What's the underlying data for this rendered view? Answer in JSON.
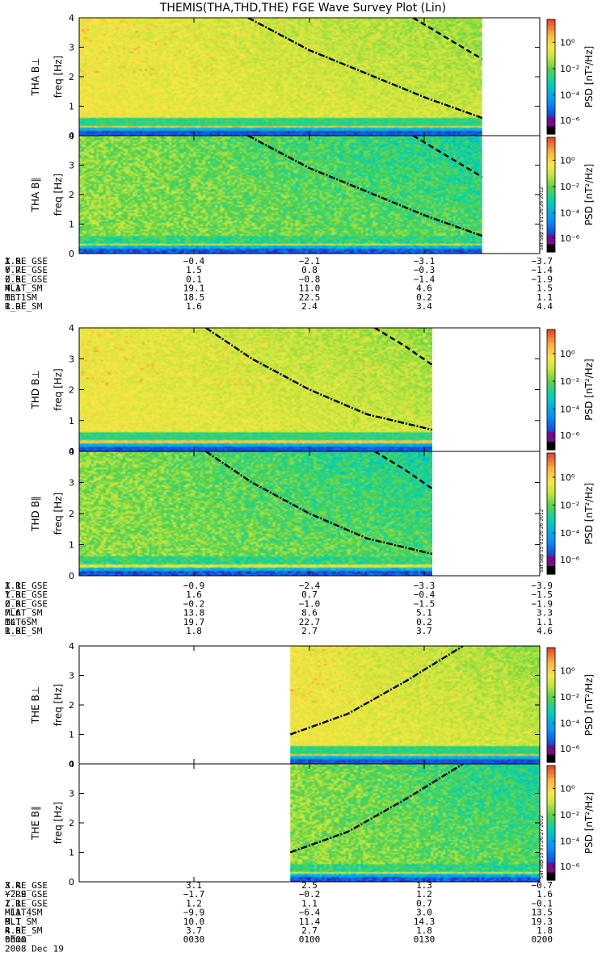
{
  "title": "THEMIS(THA,THD,THE) FGE Wave Survey Plot (Lin)",
  "colorbar": {
    "label": "PSD [nT²/Hz]",
    "ticks": [
      "10⁰",
      "10⁻²",
      "10⁻⁴",
      "10⁻⁶"
    ]
  },
  "chart_data": {
    "type": "heatmap",
    "x_unit": "hhmm",
    "time_ticks": [
      "0000",
      "0030",
      "0100",
      "0130",
      "0200"
    ],
    "date_label": "2008 Dec 19",
    "ylabel": "freq [Hz]",
    "ylim": [
      0,
      4
    ],
    "y_ticks": [
      "0",
      "1",
      "2",
      "3",
      "4"
    ],
    "panels": [
      {
        "probe": "THA",
        "label": "THA B⊥",
        "data_start": 0.0,
        "data_end": 105.0,
        "curves": [
          {
            "style": "dashdot",
            "points": [
              [
                44,
                4.0
              ],
              [
                60,
                2.9
              ],
              [
                75,
                2.1
              ],
              [
                90,
                1.3
              ],
              [
                105,
                0.6
              ]
            ]
          },
          {
            "style": "dash",
            "points": [
              [
                87,
                4.0
              ],
              [
                96,
                3.3
              ],
              [
                105,
                2.6
              ]
            ]
          }
        ]
      },
      {
        "probe": "THA",
        "label": "THA B∥",
        "data_start": 0.0,
        "data_end": 105.0,
        "stamp": "Sat Sep 15 01:26:26 2012",
        "curves": [
          {
            "style": "dashdot",
            "points": [
              [
                44,
                4.0
              ],
              [
                60,
                2.9
              ],
              [
                75,
                2.1
              ],
              [
                90,
                1.3
              ],
              [
                105,
                0.6
              ]
            ]
          },
          {
            "style": "dash",
            "points": [
              [
                87,
                4.0
              ],
              [
                96,
                3.3
              ],
              [
                105,
                2.6
              ]
            ]
          }
        ]
      },
      {
        "probe": "THD",
        "label": "THD B⊥",
        "data_start": 0.0,
        "data_end": 92.0,
        "curves": [
          {
            "style": "dashdot",
            "points": [
              [
                33,
                4.0
              ],
              [
                45,
                3.0
              ],
              [
                60,
                2.0
              ],
              [
                75,
                1.2
              ],
              [
                92,
                0.7
              ]
            ]
          },
          {
            "style": "dash",
            "points": [
              [
                77,
                4.0
              ],
              [
                85,
                3.4
              ],
              [
                92,
                2.8
              ]
            ]
          }
        ]
      },
      {
        "probe": "THD",
        "label": "THD B∥",
        "data_start": 0.0,
        "data_end": 92.0,
        "stamp": "Sat Sep 15 01:26:26 2012",
        "curves": [
          {
            "style": "dashdot",
            "points": [
              [
                33,
                4.0
              ],
              [
                45,
                3.0
              ],
              [
                60,
                2.0
              ],
              [
                75,
                1.2
              ],
              [
                92,
                0.7
              ]
            ]
          },
          {
            "style": "dash",
            "points": [
              [
                77,
                4.0
              ],
              [
                85,
                3.4
              ],
              [
                92,
                2.8
              ]
            ]
          }
        ]
      },
      {
        "probe": "THE",
        "label": "THE B⊥",
        "data_start": 55.0,
        "data_end": 120.0,
        "curves": [
          {
            "style": "dashdot",
            "points": [
              [
                55,
                1.0
              ],
              [
                70,
                1.7
              ],
              [
                85,
                2.8
              ],
              [
                100,
                4.0
              ]
            ]
          }
        ]
      },
      {
        "probe": "THE",
        "label": "THE B∥",
        "data_start": 55.0,
        "data_end": 120.0,
        "stamp": "Sat Sep 15 01:26:27 2012",
        "curves": [
          {
            "style": "dashdot",
            "points": [
              [
                55,
                1.0
              ],
              [
                70,
                1.7
              ],
              [
                85,
                2.8
              ],
              [
                100,
                4.0
              ]
            ]
          }
        ]
      }
    ],
    "ephemeris": [
      {
        "probe": "THA",
        "rows": [
          {
            "name": "X_RE_GSE",
            "values": [
              "1.6",
              "−0.4",
              "−2.1",
              "−3.1",
              "−3.7"
            ]
          },
          {
            "name": "Y_RE_GSE",
            "values": [
              "0.7",
              "1.5",
              "0.8",
              "−0.3",
              "−1.4"
            ]
          },
          {
            "name": "Z_RE_GSE",
            "values": [
              "0.8",
              "0.1",
              "−0.8",
              "−1.4",
              "−1.9"
            ]
          },
          {
            "name": "MLAT_SM",
            "values": [
              "4.1",
              "19.1",
              "11.0",
              "4.6",
              "1.5"
            ]
          },
          {
            "name": "MLT_SM",
            "values": [
              "13.1",
              "18.5",
              "22.5",
              "0.2",
              "1.1"
            ]
          },
          {
            "name": "R_RE_SM",
            "values": [
              "1.9",
              "1.6",
              "2.4",
              "3.4",
              "4.4"
            ]
          }
        ]
      },
      {
        "probe": "THD",
        "rows": [
          {
            "name": "X_RE_GSE",
            "values": [
              "1.1",
              "−0.9",
              "−2.4",
              "−3.3",
              "−3.9"
            ]
          },
          {
            "name": "Y_RE_GSE",
            "values": [
              "1.3",
              "1.6",
              "0.7",
              "−0.4",
              "−1.5"
            ]
          },
          {
            "name": "Z_RE_GSE",
            "values": [
              "0.6",
              "−0.2",
              "−1.0",
              "−1.5",
              "−1.9"
            ]
          },
          {
            "name": "MLAT_SM",
            "values": [
              "7.6",
              "13.8",
              "8.6",
              "5.1",
              "3.3"
            ]
          },
          {
            "name": "MLT_SM",
            "values": [
              "14.6",
              "19.7",
              "22.7",
              "0.2",
              "1.1"
            ]
          },
          {
            "name": "R_RE_SM",
            "values": [
              "1.8",
              "1.8",
              "2.7",
              "3.7",
              "4.6"
            ]
          }
        ]
      },
      {
        "probe": "THE",
        "rows": [
          {
            "name": "X_RE_GSE",
            "values": [
              "3.4",
              "3.1",
              "2.5",
              "1.3",
              "−0.7"
            ]
          },
          {
            "name": "Y_RE_GSE",
            "values": [
              "−2.9",
              "−1.7",
              "−0.2",
              "1.2",
              "1.6"
            ]
          },
          {
            "name": "Z_RE_GSE",
            "values": [
              "1.1",
              "1.2",
              "1.1",
              "0.7",
              "−0.1"
            ]
          },
          {
            "name": "MLAT_SM",
            "values": [
              "−11.4",
              "−9.9",
              "−6.4",
              "3.0",
              "13.5"
            ]
          },
          {
            "name": "MLT_SM",
            "values": [
              "9.1",
              "10.0",
              "11.4",
              "14.3",
              "19.3"
            ]
          },
          {
            "name": "R_RE_SM",
            "values": [
              "4.6",
              "3.7",
              "2.7",
              "1.8",
              "1.8"
            ]
          }
        ]
      }
    ]
  }
}
